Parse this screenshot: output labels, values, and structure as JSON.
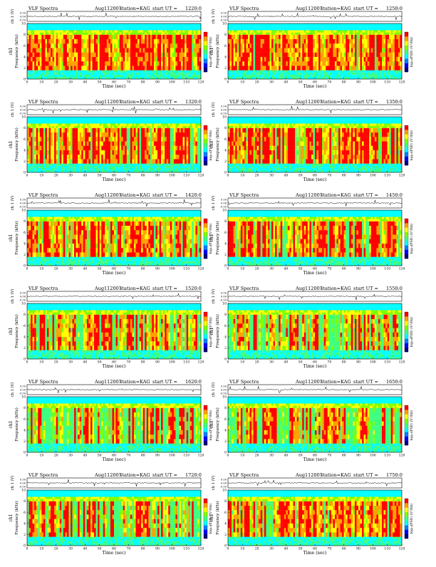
{
  "page": {
    "title_prefix": "VLF Spectra",
    "date": "Aug112007",
    "station": "station=KAG",
    "start_label": "start  UT  ="
  },
  "colors": {
    "spectrum_scale": [
      "#000080",
      "#0000ff",
      "#0080ff",
      "#00ffff",
      "#40ff80",
      "#80ff00",
      "#ffff00",
      "#ffa000",
      "#ff0000"
    ],
    "waveform": "#000000",
    "background": "#ffffff"
  },
  "chart_data": [
    {
      "type": "heatmap",
      "panel": "spectra-1",
      "start_time": "1220:0",
      "title": "VLF Spectra   Aug112007   station=KAG  start  UT  =1220:0",
      "top_ylabel": "ch 1 (V)",
      "top_yticks": [
        "0.50",
        "0.00",
        "-0.50"
      ],
      "top_ylim": [
        -0.5,
        0.5
      ],
      "ylabel": "Frequency (kHz)",
      "ylabel_channel": "ch1",
      "yticks": [
        0,
        2,
        4,
        6,
        8,
        10
      ],
      "ylim": [
        0,
        10
      ],
      "xlabel": "Time (sec)",
      "xticks": [
        0,
        10,
        20,
        30,
        40,
        50,
        60,
        70,
        80,
        90,
        100,
        110,
        120
      ],
      "xlim": [
        0,
        120
      ],
      "colorbar_label": "log₁₀(PSD) (V²/Hz)",
      "activity_level": 0.95
    },
    {
      "type": "heatmap",
      "panel": "spectra-2",
      "start_time": "1250:0",
      "title": "VLF Spectra   Aug112007   station=KAG  start  UT  =1250:0",
      "top_ylabel": "ch 1 (V)",
      "top_yticks": [
        "0.50",
        "0.00",
        "-0.50"
      ],
      "top_ylim": [
        -0.5,
        0.5
      ],
      "ylabel": "Frequency (kHz)",
      "ylabel_channel": "ch1",
      "yticks": [
        0,
        2,
        4,
        6,
        8,
        10
      ],
      "ylim": [
        0,
        10
      ],
      "xlabel": "Time (sec)",
      "xticks": [
        0,
        10,
        20,
        30,
        40,
        50,
        60,
        70,
        80,
        90,
        100,
        110,
        120
      ],
      "xlim": [
        0,
        120
      ],
      "colorbar_label": "log₁₀(PSD) (V²/Hz)",
      "activity_level": 0.95
    },
    {
      "type": "heatmap",
      "panel": "spectra-3",
      "start_time": "1320:0",
      "title": "VLF Spectra   Aug112007   station=KAG  start  UT  =1320:0",
      "top_ylabel": "ch 1 (V)",
      "top_yticks": [
        "0.50",
        "0.00",
        "-0.50"
      ],
      "top_ylim": [
        -0.5,
        0.5
      ],
      "ylabel": "Frequency (kHz)",
      "ylabel_channel": "ch1",
      "yticks": [
        0,
        2,
        4,
        6,
        8,
        10
      ],
      "ylim": [
        0,
        10
      ],
      "xlabel": "Time (sec)",
      "xticks": [
        0,
        10,
        20,
        30,
        40,
        50,
        60,
        70,
        80,
        90,
        100,
        110,
        120
      ],
      "xlim": [
        0,
        120
      ],
      "colorbar_label": "log₁₀(PSD) (V²/Hz)",
      "activity_level": 0.85
    },
    {
      "type": "heatmap",
      "panel": "spectra-4",
      "start_time": "1350:0",
      "title": "VLF Spectra   Aug112007   station=KAG  start  UT  =1350:0",
      "top_ylabel": "ch 1 (V)",
      "top_yticks": [
        "0.50",
        "0.00",
        "-0.50"
      ],
      "top_ylim": [
        -0.5,
        0.5
      ],
      "ylabel": "Frequency (kHz)",
      "ylabel_channel": "ch1",
      "yticks": [
        0,
        2,
        4,
        6,
        8,
        10
      ],
      "ylim": [
        0,
        10
      ],
      "xlabel": "Time (sec)",
      "xticks": [
        0,
        10,
        20,
        30,
        40,
        50,
        60,
        70,
        80,
        90,
        100,
        110,
        120
      ],
      "xlim": [
        0,
        120
      ],
      "colorbar_label": "log₁₀(PSD) (V²/Hz)",
      "activity_level": 0.85
    },
    {
      "type": "heatmap",
      "panel": "spectra-5",
      "start_time": "1420:0",
      "title": "VLF Spectra   Aug112007   station=KAG  start  UT  =1420:0",
      "top_ylabel": "ch 1 (V)",
      "top_yticks": [
        "0.50",
        "0.00",
        "-0.50"
      ],
      "top_ylim": [
        -0.5,
        0.5
      ],
      "ylabel": "Frequency (kHz)",
      "ylabel_channel": "ch1",
      "yticks": [
        0,
        2,
        4,
        6,
        8,
        10
      ],
      "ylim": [
        0,
        10
      ],
      "xlabel": "Time (sec)",
      "xticks": [
        0,
        10,
        20,
        30,
        40,
        50,
        60,
        70,
        80,
        90,
        100,
        110,
        120
      ],
      "xlim": [
        0,
        120
      ],
      "colorbar_label": "log₁₀(PSD) (V²/Hz)",
      "activity_level": 0.8
    },
    {
      "type": "heatmap",
      "panel": "spectra-6",
      "start_time": "1450:0",
      "title": "VLF Spectra   Aug112007   station=KAG  start  UT  =1450:0",
      "top_ylabel": "ch 1 (V)",
      "top_yticks": [
        "0.50",
        "0.00",
        "-0.50"
      ],
      "top_ylim": [
        -0.5,
        0.5
      ],
      "ylabel": "Frequency (kHz)",
      "ylabel_channel": "ch1",
      "yticks": [
        0,
        2,
        4,
        6,
        8,
        10
      ],
      "ylim": [
        0,
        10
      ],
      "xlabel": "Time (sec)",
      "xticks": [
        0,
        10,
        20,
        30,
        40,
        50,
        60,
        70,
        80,
        90,
        100,
        110,
        120
      ],
      "xlim": [
        0,
        120
      ],
      "colorbar_label": "log₁₀(PSD) (V²/Hz)",
      "activity_level": 0.8
    },
    {
      "type": "heatmap",
      "panel": "spectra-7",
      "start_time": "1520:0",
      "title": "VLF Spectra   Aug112007   station=KAG  start  UT  =1520:0",
      "top_ylabel": "ch 1 (V)",
      "top_yticks": [
        "0.50",
        "0.00",
        "-0.50"
      ],
      "top_ylim": [
        -0.5,
        0.5
      ],
      "ylabel": "Frequency (kHz)",
      "ylabel_channel": "ch1",
      "yticks": [
        0,
        2,
        4,
        6,
        8,
        10
      ],
      "ylim": [
        0,
        10
      ],
      "xlabel": "Time (sec)",
      "xticks": [
        0,
        10,
        20,
        30,
        40,
        50,
        60,
        70,
        80,
        90,
        100,
        110,
        120
      ],
      "xlim": [
        0,
        120
      ],
      "colorbar_label": "log₁₀(PSD) (V²/Hz)",
      "activity_level": 0.6
    },
    {
      "type": "heatmap",
      "panel": "spectra-8",
      "start_time": "1550:0",
      "title": "VLF Spectra   Aug112007   station=KAG  start  UT  =1550:0",
      "top_ylabel": "ch 1 (V)",
      "top_yticks": [
        "0.50",
        "0.00",
        "-0.50"
      ],
      "top_ylim": [
        -0.5,
        0.5
      ],
      "ylabel": "Frequency (kHz)",
      "ylabel_channel": "ch1",
      "yticks": [
        0,
        2,
        4,
        6,
        8,
        10
      ],
      "ylim": [
        0,
        10
      ],
      "xlabel": "Time (sec)",
      "xticks": [
        0,
        10,
        20,
        30,
        40,
        50,
        60,
        70,
        80,
        90,
        100,
        110,
        120
      ],
      "xlim": [
        0,
        120
      ],
      "colorbar_label": "log₁₀(PSD) (V²/Hz)",
      "activity_level": 0.6
    },
    {
      "type": "heatmap",
      "panel": "spectra-9",
      "start_time": "1620:0",
      "title": "VLF Spectra   Aug112007   station=KAG  start  UT  =1620:0",
      "top_ylabel": "ch 1 (V)",
      "top_yticks": [
        "0.50",
        "0.00",
        "-0.50"
      ],
      "top_ylim": [
        -0.5,
        0.5
      ],
      "ylabel": "Frequency (kHz)",
      "ylabel_channel": "ch1",
      "yticks": [
        0,
        2,
        4,
        6,
        8,
        10
      ],
      "ylim": [
        0,
        10
      ],
      "xlabel": "Time (sec)",
      "xticks": [
        0,
        10,
        20,
        30,
        40,
        50,
        60,
        70,
        80,
        90,
        100,
        110,
        120
      ],
      "xlim": [
        0,
        120
      ],
      "colorbar_label": "log₁₀(PSD) (V²/Hz)",
      "activity_level": 0.55
    },
    {
      "type": "heatmap",
      "panel": "spectra-10",
      "start_time": "1650:0",
      "title": "VLF Spectra   Aug112007   station=KAG  start  UT  =1650:0",
      "top_ylabel": "ch 1 (V)",
      "top_yticks": [
        "0.50",
        "0.00",
        "-0.50"
      ],
      "top_ylim": [
        -0.5,
        0.5
      ],
      "ylabel": "Frequency (kHz)",
      "ylabel_channel": "ch1",
      "yticks": [
        0,
        2,
        4,
        6,
        8,
        10
      ],
      "ylim": [
        0,
        10
      ],
      "xlabel": "Time (sec)",
      "xticks": [
        0,
        10,
        20,
        30,
        40,
        50,
        60,
        70,
        80,
        90,
        100,
        110,
        120
      ],
      "xlim": [
        0,
        120
      ],
      "colorbar_label": "log₁₀(PSD) (V²/Hz)",
      "activity_level": 0.55
    },
    {
      "type": "heatmap",
      "panel": "spectra-11",
      "start_time": "1720:0",
      "title": "VLF Spectra   Aug112007   station=KAG  start  UT  =1720:0",
      "top_ylabel": "ch 1 (V)",
      "top_yticks": [
        "0.50",
        "0.00",
        "-0.50"
      ],
      "top_ylim": [
        -0.5,
        0.5
      ],
      "ylabel": "Frequency (kHz)",
      "ylabel_channel": "ch1",
      "yticks": [
        0,
        2,
        4,
        6,
        8,
        10
      ],
      "ylim": [
        0,
        10
      ],
      "xlabel": "Time (sec)",
      "xticks": [
        0,
        10,
        20,
        30,
        40,
        50,
        60,
        70,
        80,
        90,
        100,
        110,
        120
      ],
      "xlim": [
        0,
        120
      ],
      "colorbar_label": "log₁₀(PSD) (V²/Hz)",
      "activity_level": 0.55
    },
    {
      "type": "heatmap",
      "panel": "spectra-12",
      "start_time": "1750:0",
      "title": "VLF Spectra   Aug112007   station=KAG  start  UT  =1750:0",
      "top_ylabel": "ch 1 (V)",
      "top_yticks": [
        "0.50",
        "0.00",
        "-0.50"
      ],
      "top_ylim": [
        -0.5,
        0.5
      ],
      "ylabel": "Frequency (kHz)",
      "ylabel_channel": "ch1",
      "yticks": [
        0,
        2,
        4,
        6,
        8,
        10
      ],
      "ylim": [
        0,
        10
      ],
      "xlabel": "Time (sec)",
      "xticks": [
        0,
        10,
        20,
        30,
        40,
        50,
        60,
        70,
        80,
        90,
        100,
        110,
        120
      ],
      "xlim": [
        0,
        120
      ],
      "colorbar_label": "log₁₀(PSD) (V²/Hz)",
      "activity_level": 0.8
    }
  ]
}
